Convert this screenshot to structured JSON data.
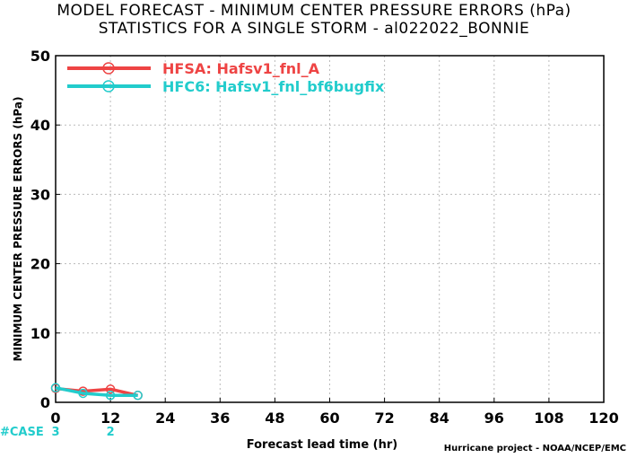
{
  "header": {
    "title_line1": "MODEL FORECAST - MINIMUM CENTER PRESSURE ERRORS (hPa)",
    "title_line2": "STATISTICS FOR A SINGLE STORM - al022022_BONNIE"
  },
  "footer": {
    "credit": "Hurricane project - NOAA/NCEP/EMC"
  },
  "colors": {
    "hfsa": "#ee4444",
    "hfc6": "#22cccc",
    "grid": "#bbbbbb",
    "axis": "#000000"
  },
  "chart_data": {
    "type": "line",
    "title": "MODEL FORECAST - MINIMUM CENTER PRESSURE ERRORS (hPa)",
    "subtitle": "STATISTICS FOR A SINGLE STORM - al022022_BONNIE",
    "xlabel": "Forecast lead time (hr)",
    "ylabel": "MINIMUM CENTER PRESSURE ERRORS (hPa)",
    "xlim": [
      0,
      120
    ],
    "ylim": [
      0,
      50
    ],
    "x_ticks": [
      "0",
      "12",
      "24",
      "36",
      "48",
      "60",
      "72",
      "84",
      "96",
      "108",
      "120"
    ],
    "y_ticks": [
      "0",
      "10",
      "20",
      "30",
      "40",
      "50"
    ],
    "grid": true,
    "legend_position": "top-left",
    "series": [
      {
        "name": "HFSA: Hafsv1_fnl_A",
        "color": "#ee4444",
        "x": [
          0,
          6,
          12,
          18
        ],
        "y": [
          2.0,
          1.6,
          1.9,
          1.0
        ]
      },
      {
        "name": "HFC6: Hafsv1_fnl_bf6bugfix",
        "color": "#22cccc",
        "x": [
          0,
          6,
          12,
          18
        ],
        "y": [
          2.1,
          1.3,
          1.0,
          1.0
        ]
      }
    ],
    "case_counts": {
      "label": "#CASE",
      "x": [
        0,
        12
      ],
      "counts": [
        "3",
        "2"
      ]
    }
  }
}
